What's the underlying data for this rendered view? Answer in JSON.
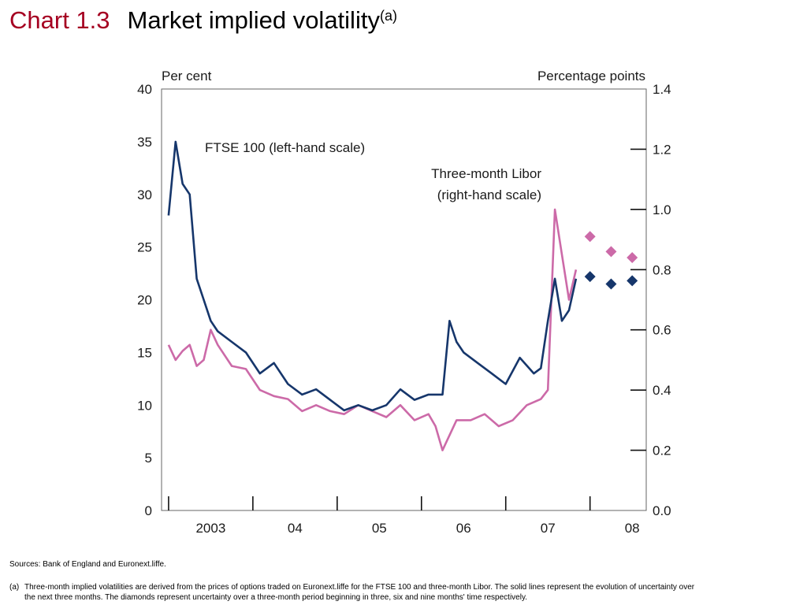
{
  "title": {
    "chart_number": "Chart 1.3",
    "text": "Market implied volatility",
    "superscript": "(a)"
  },
  "chart_data": {
    "type": "line",
    "left_axis": {
      "label": "Per cent",
      "ticks": [
        "0",
        "5",
        "10",
        "15",
        "20",
        "25",
        "30",
        "35",
        "40"
      ],
      "ylim": [
        0,
        40
      ]
    },
    "right_axis": {
      "label": "Percentage points",
      "ticks": [
        "0.0",
        "0.2",
        "0.4",
        "0.6",
        "0.8",
        "1.0",
        "1.2",
        "1.4"
      ],
      "ylim": [
        0,
        1.4
      ]
    },
    "x_axis": {
      "ticks": [
        "2003",
        "04",
        "05",
        "06",
        "07",
        "08"
      ],
      "range": [
        "2002-12",
        "2008-09"
      ]
    },
    "annotations": [
      "FTSE 100 (left-hand scale)",
      "Three-month Libor",
      "(right-hand scale)"
    ],
    "colors": {
      "ftse": "#16366b",
      "libor": "#cc6aa8",
      "title_number": "#a50021"
    },
    "series": [
      {
        "axis": "left",
        "color": "#16366b",
        "x": [
          "2003-01",
          "2003-02",
          "2003-03",
          "2003-04",
          "2003-05",
          "2003-06",
          "2003-07",
          "2003-08",
          "2003-10",
          "2003-12",
          "2004-02",
          "2004-04",
          "2004-06",
          "2004-08",
          "2004-10",
          "2004-12",
          "2005-02",
          "2005-04",
          "2005-06",
          "2005-08",
          "2005-10",
          "2005-12",
          "2006-02",
          "2006-04",
          "2006-05",
          "2006-06",
          "2006-07",
          "2006-09",
          "2006-11",
          "2007-01",
          "2007-03",
          "2007-05",
          "2007-06",
          "2007-07",
          "2007-08",
          "2007-09",
          "2007-10",
          "2007-11"
        ],
        "values": [
          28,
          35,
          31,
          30,
          22,
          20,
          18,
          17,
          16,
          15,
          13,
          14,
          12,
          11,
          11.5,
          10.5,
          9.5,
          10,
          9.5,
          10,
          11.5,
          10.5,
          11,
          11,
          18,
          16,
          15,
          14,
          13,
          12,
          14.5,
          13,
          13.5,
          18,
          22,
          18,
          19,
          22
        ]
      },
      {
        "axis": "right",
        "color": "#cc6aa8",
        "x": [
          "2003-01",
          "2003-02",
          "2003-03",
          "2003-04",
          "2003-05",
          "2003-06",
          "2003-07",
          "2003-08",
          "2003-10",
          "2003-12",
          "2004-02",
          "2004-04",
          "2004-06",
          "2004-08",
          "2004-10",
          "2004-12",
          "2005-02",
          "2005-04",
          "2005-06",
          "2005-08",
          "2005-10",
          "2005-12",
          "2006-02",
          "2006-03",
          "2006-04",
          "2006-06",
          "2006-08",
          "2006-10",
          "2006-12",
          "2007-02",
          "2007-04",
          "2007-06",
          "2007-07",
          "2007-08",
          "2007-09",
          "2007-10",
          "2007-11"
        ],
        "values": [
          0.55,
          0.5,
          0.53,
          0.55,
          0.48,
          0.5,
          0.6,
          0.55,
          0.48,
          0.47,
          0.4,
          0.38,
          0.37,
          0.33,
          0.35,
          0.33,
          0.32,
          0.35,
          0.33,
          0.31,
          0.35,
          0.3,
          0.32,
          0.28,
          0.2,
          0.3,
          0.3,
          0.32,
          0.28,
          0.3,
          0.35,
          0.37,
          0.4,
          1.0,
          0.85,
          0.7,
          0.8
        ]
      }
    ],
    "diamonds": [
      {
        "axis": "right",
        "color": "#cc6aa8",
        "x": [
          "2008-01",
          "2008-04",
          "2008-07"
        ],
        "values": [
          0.91,
          0.86,
          0.84
        ]
      },
      {
        "axis": "left",
        "color": "#16366b",
        "x": [
          "2008-01",
          "2008-04",
          "2008-07"
        ],
        "values": [
          22.2,
          21.5,
          21.8
        ]
      }
    ]
  },
  "footer": {
    "sources": "Sources:  Bank of England and Euronext.liffe.",
    "note_label": "(a)",
    "note_line1": "Three-month implied volatilities are derived from the prices of options traded on Euronext.liffe for the FTSE 100 and three-month Libor.  The solid lines represent the evolution of uncertainty over",
    "note_line2": "the next three months.  The diamonds represent uncertainty over a three-month period beginning in three, six and nine months' time respectively."
  }
}
